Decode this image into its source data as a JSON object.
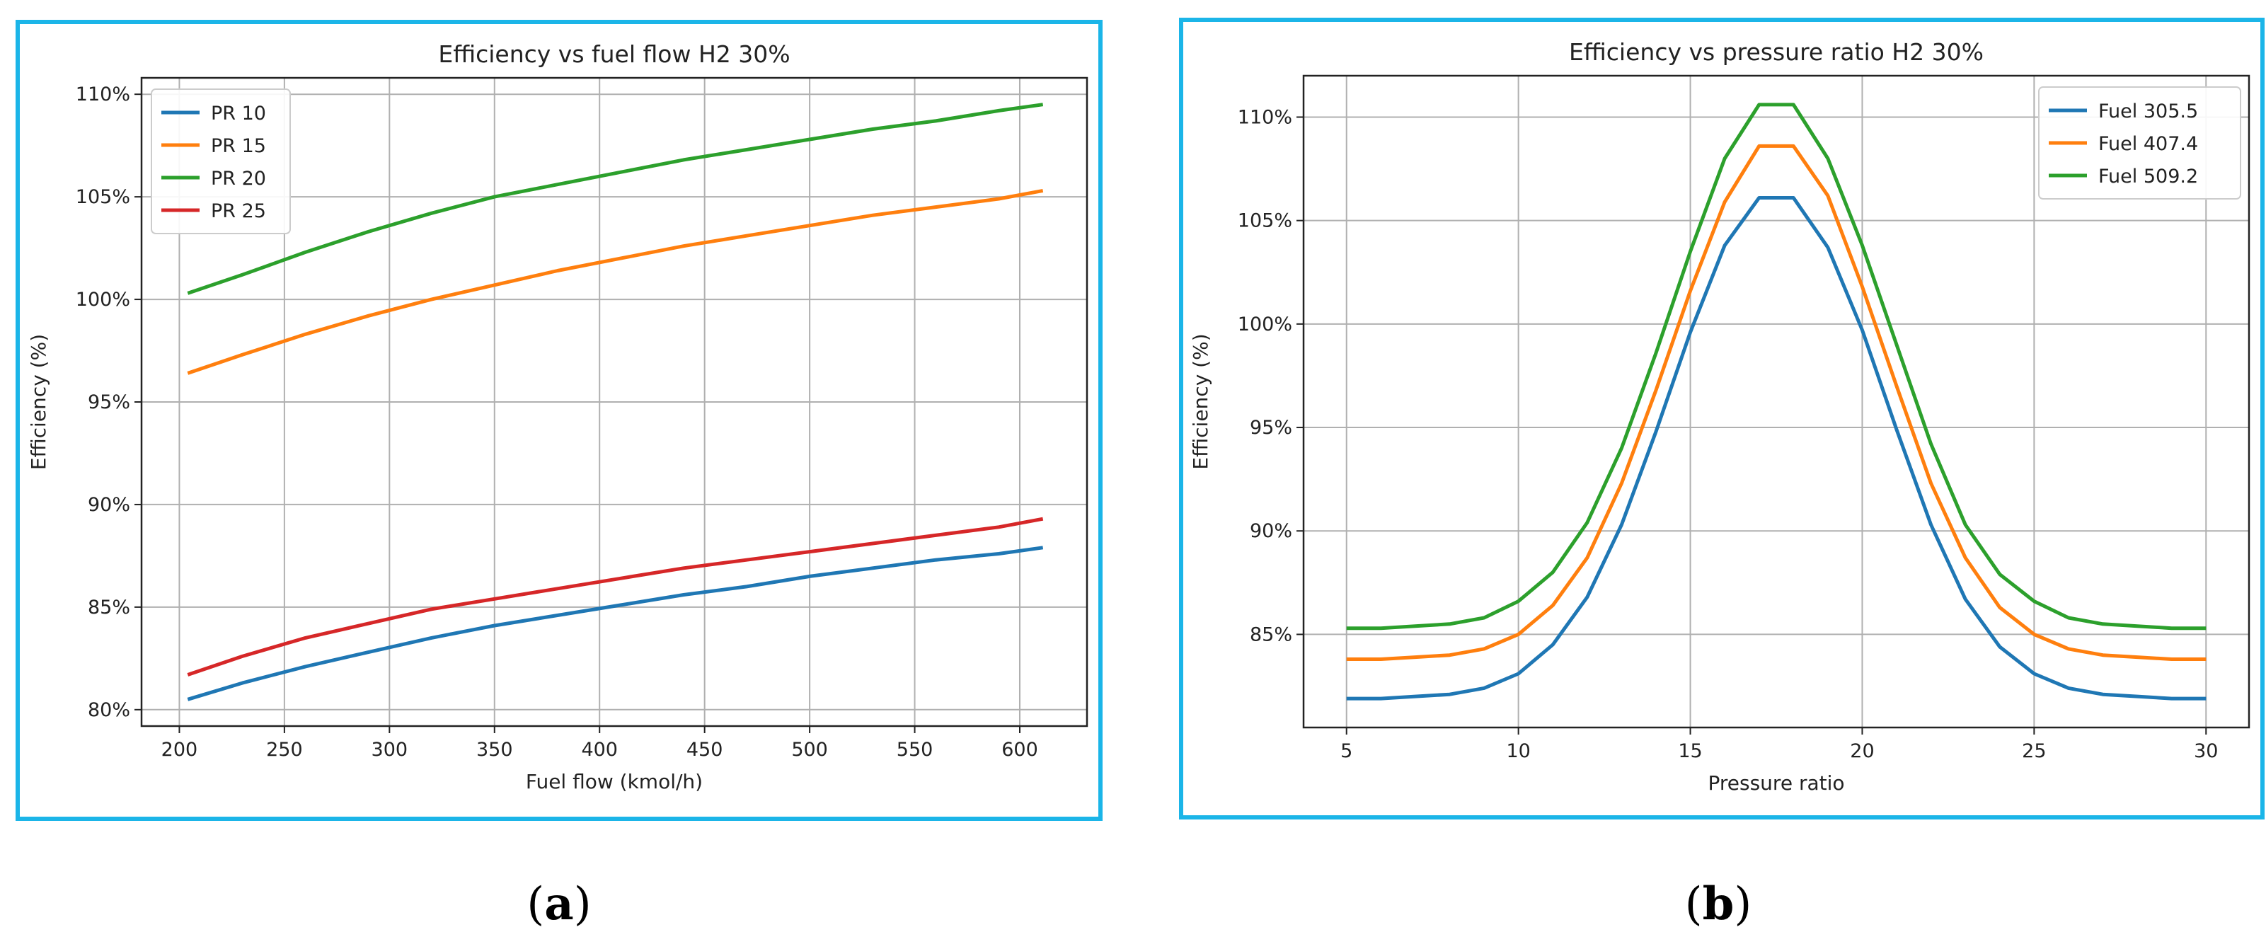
{
  "captions": {
    "a": "a",
    "b": "b"
  },
  "colors": {
    "frame": "#1bb5e8",
    "blue": "#1f77b4",
    "orange": "#ff7f0e",
    "green": "#2ca02c",
    "red": "#d62728"
  },
  "chart_data": [
    {
      "type": "line",
      "title": "Efficiency vs fuel flow H2 30%",
      "xlabel": "Fuel flow (kmol/h)",
      "ylabel": "Efficiency (%)",
      "xlim": [
        182,
        632
      ],
      "ylim": [
        79.2,
        110.8
      ],
      "xticks": [
        200,
        250,
        300,
        350,
        400,
        450,
        500,
        550,
        600
      ],
      "yticks": [
        80,
        85,
        90,
        95,
        100,
        105,
        110
      ],
      "ytick_suffix": "%",
      "grid": true,
      "legend_position": "top-left",
      "x": [
        204,
        230,
        260,
        290,
        320,
        350,
        380,
        410,
        440,
        470,
        500,
        530,
        560,
        590,
        611
      ],
      "series": [
        {
          "name": "PR 10",
          "color": "#1f77b4",
          "values": [
            80.5,
            81.3,
            82.1,
            82.8,
            83.5,
            84.1,
            84.6,
            85.1,
            85.6,
            86.0,
            86.5,
            86.9,
            87.3,
            87.6,
            87.9
          ]
        },
        {
          "name": "PR 15",
          "color": "#ff7f0e",
          "values": [
            96.4,
            97.3,
            98.3,
            99.2,
            100.0,
            100.7,
            101.4,
            102.0,
            102.6,
            103.1,
            103.6,
            104.1,
            104.5,
            104.9,
            105.3
          ]
        },
        {
          "name": "PR 20",
          "color": "#2ca02c",
          "values": [
            100.3,
            101.2,
            102.3,
            103.3,
            104.2,
            105.0,
            105.6,
            106.2,
            106.8,
            107.3,
            107.8,
            108.3,
            108.7,
            109.2,
            109.5
          ]
        },
        {
          "name": "PR 25",
          "color": "#d62728",
          "values": [
            81.7,
            82.6,
            83.5,
            84.2,
            84.9,
            85.4,
            85.9,
            86.4,
            86.9,
            87.3,
            87.7,
            88.1,
            88.5,
            88.9,
            89.3
          ]
        }
      ]
    },
    {
      "type": "line",
      "title": "Efficiency vs pressure ratio H2 30%",
      "xlabel": "Pressure ratio",
      "ylabel": "Efficiency (%)",
      "xlim": [
        3.75,
        31.25
      ],
      "ylim": [
        80.5,
        112.0
      ],
      "xticks": [
        5,
        10,
        15,
        20,
        25,
        30
      ],
      "yticks": [
        85,
        90,
        95,
        100,
        105,
        110
      ],
      "ytick_suffix": "%",
      "grid": true,
      "legend_position": "top-right",
      "x": [
        5,
        6,
        7,
        8,
        9,
        10,
        11,
        12,
        13,
        14,
        15,
        16,
        17,
        18,
        19,
        20,
        21,
        22,
        23,
        24,
        25,
        26,
        27,
        28,
        29,
        30
      ],
      "series": [
        {
          "name": "Fuel 305.5",
          "color": "#1f77b4",
          "values": [
            81.9,
            81.9,
            82.0,
            82.1,
            82.4,
            83.1,
            84.5,
            86.8,
            90.3,
            94.8,
            99.6,
            103.8,
            106.1,
            106.1,
            103.7,
            99.7,
            94.9,
            90.3,
            86.7,
            84.4,
            83.1,
            82.4,
            82.1,
            82.0,
            81.9,
            81.9
          ]
        },
        {
          "name": "Fuel 407.4",
          "color": "#ff7f0e",
          "values": [
            83.8,
            83.8,
            83.9,
            84.0,
            84.3,
            85.0,
            86.4,
            88.7,
            92.3,
            96.8,
            101.6,
            105.9,
            108.6,
            108.6,
            106.2,
            101.8,
            97.0,
            92.3,
            88.7,
            86.3,
            85.0,
            84.3,
            84.0,
            83.9,
            83.8,
            83.8
          ]
        },
        {
          "name": "Fuel 509.2",
          "color": "#2ca02c",
          "values": [
            85.3,
            85.3,
            85.4,
            85.5,
            85.8,
            86.6,
            88.0,
            90.4,
            94.0,
            98.6,
            103.5,
            108.0,
            110.6,
            110.6,
            108.0,
            103.8,
            99.0,
            94.2,
            90.3,
            87.9,
            86.6,
            85.8,
            85.5,
            85.4,
            85.3,
            85.3
          ]
        }
      ]
    }
  ]
}
